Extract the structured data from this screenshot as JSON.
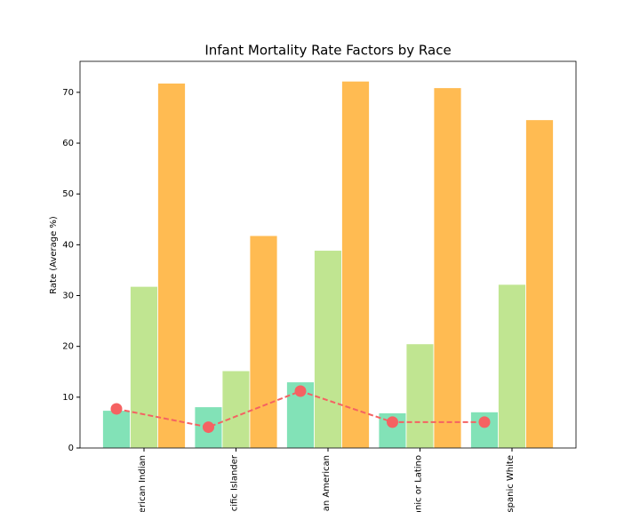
{
  "chart_data": {
    "type": "bar_line",
    "title": "Infant Mortality Rate Factors by Race",
    "ylabel": "Rate (Average %)",
    "categories": [
      "erican Indian",
      "cific Islander",
      "an American",
      "anic or Latino",
      "spanic White"
    ],
    "series": [
      {
        "type": "bar",
        "color": "#82e2b7",
        "values": [
          7.4,
          8.1,
          13.0,
          6.9,
          7.1
        ]
      },
      {
        "type": "bar",
        "color": "#c0e591",
        "values": [
          31.8,
          15.2,
          38.9,
          20.5,
          32.2
        ]
      },
      {
        "type": "bar",
        "color": "#ffbb52",
        "values": [
          71.8,
          41.8,
          72.2,
          70.9,
          64.6
        ]
      },
      {
        "type": "line",
        "color": "#f56262",
        "values": [
          7.7,
          4.1,
          11.2,
          5.1,
          5.1
        ]
      }
    ],
    "ylim": [
      0,
      76.1
    ],
    "yticks": [
      0,
      10,
      20,
      30,
      40,
      50,
      60,
      70
    ]
  }
}
